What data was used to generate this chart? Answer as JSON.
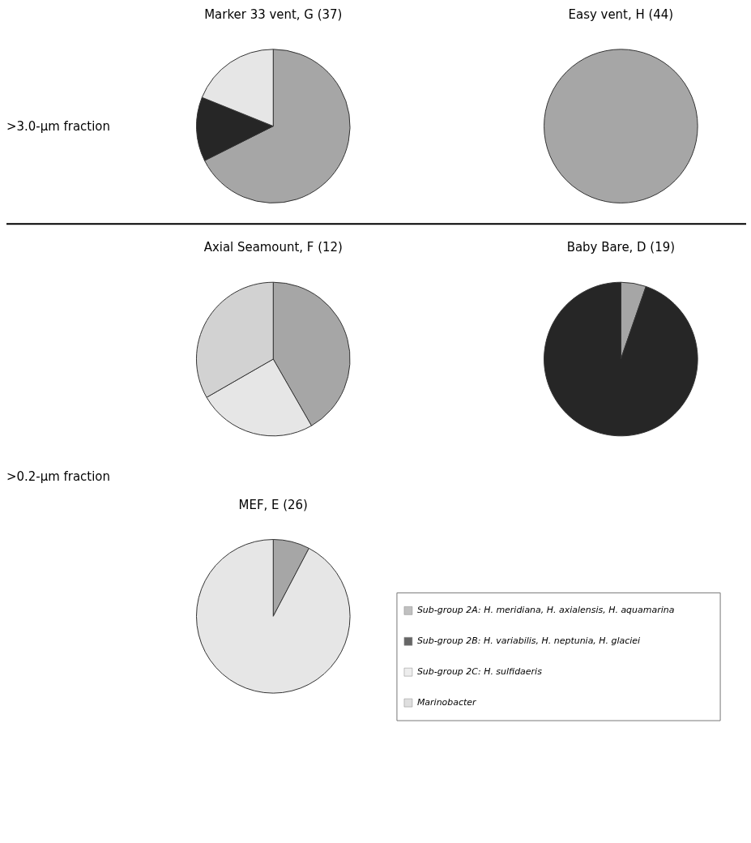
{
  "chart_data": [
    {
      "type": "pie",
      "title": "Marker 33 vent, G (37)",
      "legend": "bottom right",
      "annotations": [
        ">3.0-µm fraction"
      ],
      "categories": [
        "Sub-group 2A: H. meridiana, H. axialensis, H. aquamarina",
        "Sub-group 2B: H. variabilis, H. neptunia, H. glaciei",
        "Sub-group 2C: H. sulfidaeris",
        "Marinobacter"
      ],
      "values": [
        67.6,
        13.5,
        18.9,
        0
      ],
      "colors": [
        "#a6a6a6",
        "#262626",
        "#e6e6e6",
        "#d2d2d2"
      ]
    },
    {
      "type": "pie",
      "title": "Easy vent, H (44)",
      "categories": [
        null,
        null,
        null,
        null
      ],
      "values": [
        100,
        0,
        0,
        0
      ],
      "colors": [
        "#a6a6a6",
        "#262626",
        "#e6e6e6",
        "#d2d2d2"
      ]
    },
    {
      "type": "pie",
      "title": "Axial Seamount, F (12)",
      "annotations": [
        ">0.2-µm fraction"
      ],
      "categories": [
        null,
        null,
        null,
        null
      ],
      "values": [
        41.7,
        0,
        25,
        33.3
      ],
      "colors": [
        "#a6a6a6",
        "#262626",
        "#e6e6e6",
        "#d2d2d2"
      ]
    },
    {
      "type": "pie",
      "title": "Baby Bare, D (19)",
      "categories": [
        null,
        null,
        null,
        null
      ],
      "values": [
        5.3,
        94.7,
        0,
        0
      ],
      "colors": [
        "#a6a6a6",
        "#262626",
        "#e6e6e6",
        "#d2d2d2"
      ]
    },
    {
      "type": "pie",
      "title": "MEF, E (26)",
      "categories": [
        null,
        null,
        null,
        null
      ],
      "values": [
        7.7,
        0,
        92.3,
        0
      ],
      "colors": [
        "#a6a6a6",
        "#262626",
        "#e6e6e6",
        "#d2d2d2"
      ]
    }
  ]
}
